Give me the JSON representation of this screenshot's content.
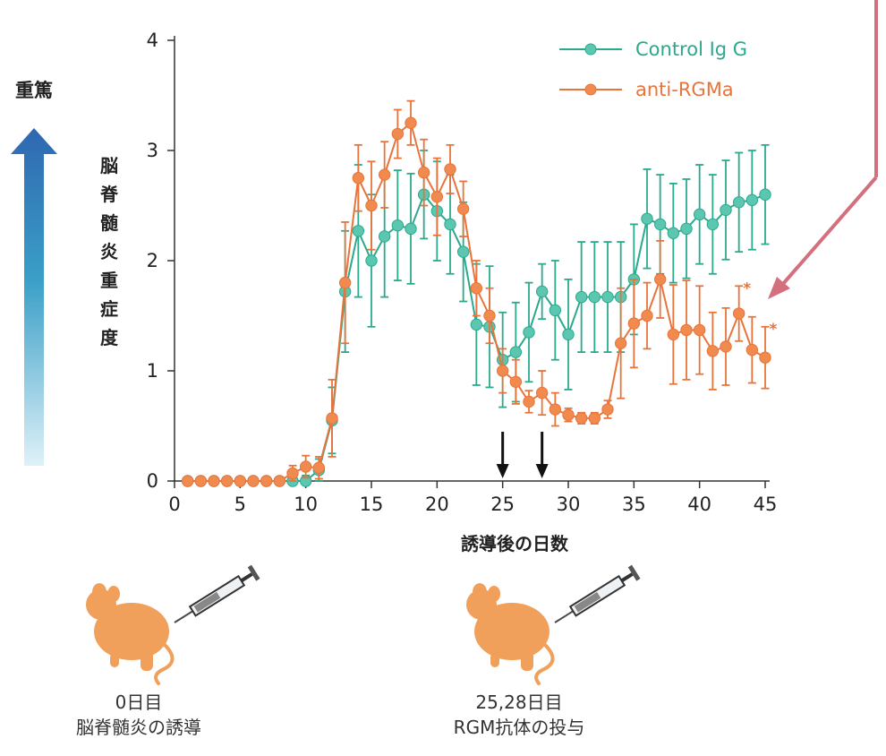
{
  "colors": {
    "control": "#2aa98d",
    "control_marker": "#5cc7b0",
    "anti": "#e8743b",
    "anti_marker": "#f08a4e",
    "pink_arrow": "#d4707e",
    "severity_arrow_top": "#2f67b1",
    "axis": "#333333"
  },
  "severity_label": "重篤",
  "annotations": {
    "asterisk": "*"
  },
  "icons": [
    "mouse-icon",
    "syringe-icon",
    "severity-gradient-arrow",
    "pink-pointer-arrow",
    "down-arrow-icon"
  ],
  "captions": {
    "left": {
      "line1": "0日目",
      "line2": "脳脊髄炎の誘導"
    },
    "right": {
      "line1": "25,28日目",
      "line2": "RGM抗体の投与"
    }
  },
  "chart_data": {
    "type": "line",
    "title": "",
    "xlabel": "誘導後の日数",
    "ylabel": "脳脊髄炎重症度",
    "xlim": [
      0,
      45
    ],
    "ylim": [
      0,
      4
    ],
    "xticks": [
      "0",
      "5",
      "10",
      "15",
      "20",
      "25",
      "30",
      "35",
      "40",
      "45"
    ],
    "yticks": [
      "0",
      "1",
      "2",
      "3",
      "4"
    ],
    "legend_position": "top-right",
    "grid": false,
    "dosing_days": [
      25,
      28
    ],
    "significance_days": [
      43,
      45
    ],
    "series": [
      {
        "name": "Control Ig G",
        "color": "#2aa98d",
        "points": [
          {
            "x": 1,
            "y": 0,
            "err": 0
          },
          {
            "x": 2,
            "y": 0,
            "err": 0
          },
          {
            "x": 3,
            "y": 0,
            "err": 0
          },
          {
            "x": 4,
            "y": 0,
            "err": 0
          },
          {
            "x": 5,
            "y": 0,
            "err": 0
          },
          {
            "x": 6,
            "y": 0,
            "err": 0
          },
          {
            "x": 7,
            "y": 0,
            "err": 0
          },
          {
            "x": 8,
            "y": 0,
            "err": 0
          },
          {
            "x": 9,
            "y": 0,
            "err": 0.05
          },
          {
            "x": 10,
            "y": 0,
            "err": 0.05
          },
          {
            "x": 11,
            "y": 0.1,
            "err": 0.1
          },
          {
            "x": 12,
            "y": 0.55,
            "err": 0.3
          },
          {
            "x": 13,
            "y": 1.72,
            "err": 0.55
          },
          {
            "x": 14,
            "y": 2.27,
            "err": 0.6
          },
          {
            "x": 15,
            "y": 2.0,
            "err": 0.6
          },
          {
            "x": 16,
            "y": 2.22,
            "err": 0.55
          },
          {
            "x": 17,
            "y": 2.32,
            "err": 0.5
          },
          {
            "x": 18,
            "y": 2.29,
            "err": 0.5
          },
          {
            "x": 19,
            "y": 2.6,
            "err": 0.4
          },
          {
            "x": 20,
            "y": 2.45,
            "err": 0.45
          },
          {
            "x": 21,
            "y": 2.33,
            "err": 0.45
          },
          {
            "x": 22,
            "y": 2.08,
            "err": 0.45
          },
          {
            "x": 23,
            "y": 1.42,
            "err": 0.55
          },
          {
            "x": 24,
            "y": 1.4,
            "err": 0.55
          },
          {
            "x": 25,
            "y": 1.1,
            "err": 0.43
          },
          {
            "x": 26,
            "y": 1.17,
            "err": 0.45
          },
          {
            "x": 27,
            "y": 1.35,
            "err": 0.45
          },
          {
            "x": 28,
            "y": 1.72,
            "err": 0.25
          },
          {
            "x": 29,
            "y": 1.55,
            "err": 0.45
          },
          {
            "x": 30,
            "y": 1.33,
            "err": 0.5
          },
          {
            "x": 31,
            "y": 1.67,
            "err": 0.5
          },
          {
            "x": 32,
            "y": 1.67,
            "err": 0.5
          },
          {
            "x": 33,
            "y": 1.67,
            "err": 0.5
          },
          {
            "x": 34,
            "y": 1.67,
            "err": 0.5
          },
          {
            "x": 35,
            "y": 1.83,
            "err": 0.5
          },
          {
            "x": 36,
            "y": 2.38,
            "err": 0.45
          },
          {
            "x": 37,
            "y": 2.33,
            "err": 0.45
          },
          {
            "x": 38,
            "y": 2.25,
            "err": 0.45
          },
          {
            "x": 39,
            "y": 2.29,
            "err": 0.45
          },
          {
            "x": 40,
            "y": 2.42,
            "err": 0.45
          },
          {
            "x": 41,
            "y": 2.33,
            "err": 0.45
          },
          {
            "x": 42,
            "y": 2.46,
            "err": 0.45
          },
          {
            "x": 43,
            "y": 2.53,
            "err": 0.45
          },
          {
            "x": 44,
            "y": 2.55,
            "err": 0.45
          },
          {
            "x": 45,
            "y": 2.6,
            "err": 0.45
          }
        ]
      },
      {
        "name": "anti-RGMa",
        "color": "#e8743b",
        "points": [
          {
            "x": 1,
            "y": 0,
            "err": 0
          },
          {
            "x": 2,
            "y": 0,
            "err": 0
          },
          {
            "x": 3,
            "y": 0,
            "err": 0
          },
          {
            "x": 4,
            "y": 0,
            "err": 0
          },
          {
            "x": 5,
            "y": 0,
            "err": 0
          },
          {
            "x": 6,
            "y": 0,
            "err": 0
          },
          {
            "x": 7,
            "y": 0,
            "err": 0
          },
          {
            "x": 8,
            "y": 0,
            "err": 0
          },
          {
            "x": 9,
            "y": 0.07,
            "err": 0.07
          },
          {
            "x": 10,
            "y": 0.13,
            "err": 0.1
          },
          {
            "x": 11,
            "y": 0.12,
            "err": 0.1
          },
          {
            "x": 12,
            "y": 0.57,
            "err": 0.35
          },
          {
            "x": 13,
            "y": 1.8,
            "err": 0.55
          },
          {
            "x": 14,
            "y": 2.75,
            "err": 0.3
          },
          {
            "x": 15,
            "y": 2.5,
            "err": 0.4
          },
          {
            "x": 16,
            "y": 2.78,
            "err": 0.3
          },
          {
            "x": 17,
            "y": 3.15,
            "err": 0.22
          },
          {
            "x": 18,
            "y": 3.25,
            "err": 0.2
          },
          {
            "x": 19,
            "y": 2.8,
            "err": 0.3
          },
          {
            "x": 20,
            "y": 2.58,
            "err": 0.35
          },
          {
            "x": 21,
            "y": 2.83,
            "err": 0.22
          },
          {
            "x": 22,
            "y": 2.47,
            "err": 0.25
          },
          {
            "x": 23,
            "y": 1.75,
            "err": 0.25
          },
          {
            "x": 24,
            "y": 1.5,
            "err": 0.25
          },
          {
            "x": 25,
            "y": 1.0,
            "err": 0.2
          },
          {
            "x": 26,
            "y": 0.9,
            "err": 0.2
          },
          {
            "x": 27,
            "y": 0.72,
            "err": 0.1
          },
          {
            "x": 28,
            "y": 0.8,
            "err": 0.2
          },
          {
            "x": 29,
            "y": 0.65,
            "err": 0.15
          },
          {
            "x": 30,
            "y": 0.6,
            "err": 0.06
          },
          {
            "x": 31,
            "y": 0.57,
            "err": 0.05
          },
          {
            "x": 32,
            "y": 0.57,
            "err": 0.05
          },
          {
            "x": 33,
            "y": 0.65,
            "err": 0.08
          },
          {
            "x": 34,
            "y": 1.25,
            "err": 0.5
          },
          {
            "x": 35,
            "y": 1.43,
            "err": 0.4
          },
          {
            "x": 36,
            "y": 1.5,
            "err": 0.3
          },
          {
            "x": 37,
            "y": 1.83,
            "err": 0.35
          },
          {
            "x": 38,
            "y": 1.33,
            "err": 0.45
          },
          {
            "x": 39,
            "y": 1.37,
            "err": 0.45
          },
          {
            "x": 40,
            "y": 1.37,
            "err": 0.4
          },
          {
            "x": 41,
            "y": 1.18,
            "err": 0.35
          },
          {
            "x": 42,
            "y": 1.22,
            "err": 0.35
          },
          {
            "x": 43,
            "y": 1.52,
            "err": 0.25
          },
          {
            "x": 44,
            "y": 1.19,
            "err": 0.3
          },
          {
            "x": 45,
            "y": 1.12,
            "err": 0.28
          }
        ]
      }
    ]
  }
}
